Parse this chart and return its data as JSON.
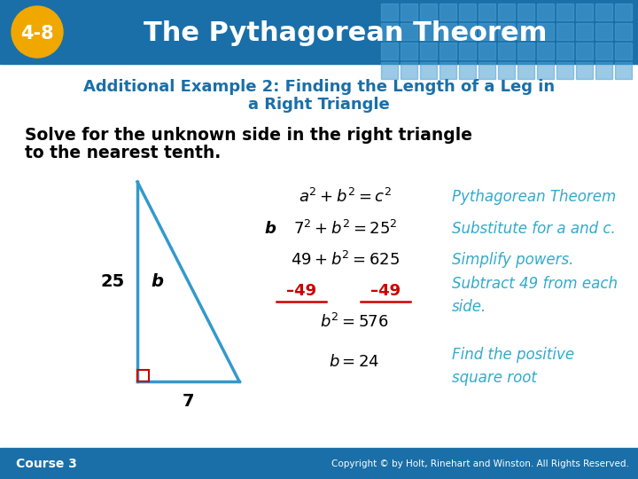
{
  "header_bg_color": "#1a6fa8",
  "header_text": "The Pythagorean Theorem",
  "header_badge_bg": "#f0a800",
  "header_badge_text": "4-8",
  "header_tile_color": "#4a9fd4",
  "subtitle_line1": "Additional Example 2: Finding the Length of a Leg in",
  "subtitle_line2": "a Right Triangle",
  "subtitle_color": "#1a6fa8",
  "body_text_line1": "Solve for the unknown side in the right triangle",
  "body_text_line2": "to the nearest tenth.",
  "body_text_color": "#000000",
  "footer_bg_color": "#1a6fa8",
  "footer_left_text": "Course 3",
  "footer_right_text": "Copyright © by Holt, Rinehart and Winston. All Rights Reserved.",
  "footer_text_color": "#ffffff",
  "triangle_color": "#3399cc",
  "right_angle_color": "#cc0000",
  "label_25": "25",
  "label_7": "7",
  "label_b": "b",
  "eq_color_black": "#000000",
  "eq_color_blue": "#33aacc",
  "eq_color_red": "#cc0000",
  "line1_note": "Pythagorean Theorem",
  "line2_note": "Substitute for a and c.",
  "line3_note": "Simplify powers.",
  "line4_note_line1": "Subtract 49 from each",
  "line4_note_line2": "side.",
  "line6_note_line1": "Find the positive",
  "line6_note_line2": "square root",
  "bg_color": "#ffffff"
}
